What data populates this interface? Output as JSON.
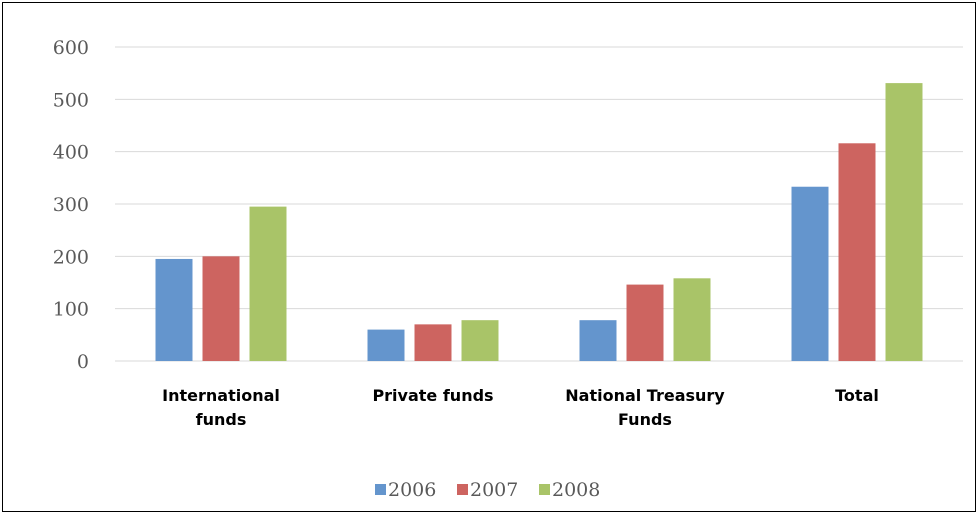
{
  "chart_data": {
    "type": "bar",
    "categories": [
      [
        "International",
        "funds"
      ],
      [
        "Private funds"
      ],
      [
        "National Treasury",
        "Funds"
      ],
      [
        "Total"
      ]
    ],
    "series": [
      {
        "name": "2006",
        "color": "#6495cd",
        "values": [
          195,
          60,
          78,
          333
        ]
      },
      {
        "name": "2007",
        "color": "#cd6460",
        "values": [
          200,
          70,
          146,
          416
        ]
      },
      {
        "name": "2008",
        "color": "#a9c468",
        "values": [
          295,
          78,
          158,
          531
        ]
      }
    ],
    "yticks": [
      0,
      100,
      200,
      300,
      400,
      500,
      600
    ],
    "ylim": [
      0,
      600
    ],
    "grid": true,
    "legend": "bottom-center"
  }
}
